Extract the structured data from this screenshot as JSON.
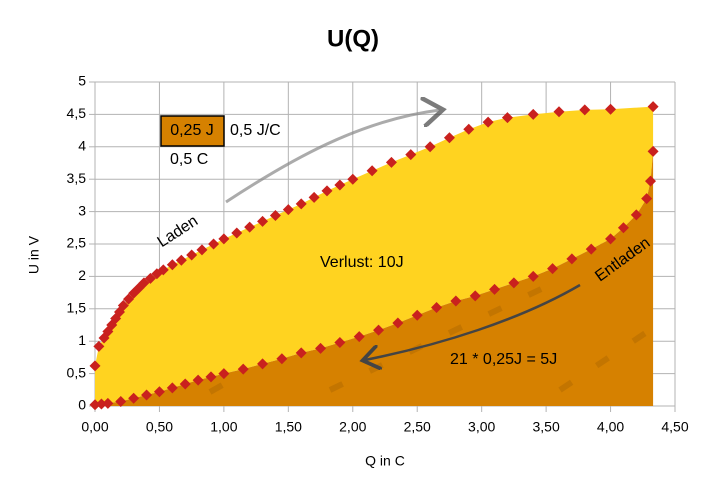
{
  "chart_data": {
    "type": "scatter",
    "title": "U(Q)",
    "x_label": "Q in C",
    "y_label": "U in V",
    "xlim": [
      0,
      4.5
    ],
    "xticks": [
      {
        "value": 0,
        "label": "0,00"
      },
      {
        "value": 0.5,
        "label": "0,50"
      },
      {
        "value": 1,
        "label": "1,00"
      },
      {
        "value": 1.5,
        "label": "1,50"
      },
      {
        "value": 2,
        "label": "2,00"
      },
      {
        "value": 2.5,
        "label": "2,50"
      },
      {
        "value": 3,
        "label": "3,00"
      },
      {
        "value": 3.5,
        "label": "3,50"
      },
      {
        "value": 4,
        "label": "4,00"
      },
      {
        "value": 4.5,
        "label": "4,50"
      }
    ],
    "ylim": [
      0,
      5
    ],
    "yticks": [
      0,
      {
        "value": 0.5,
        "label": "0,5"
      },
      1,
      {
        "value": 1.5,
        "label": "1,5"
      },
      2,
      {
        "value": 2.5,
        "label": "2,5"
      },
      3,
      {
        "value": 3.5,
        "label": "3,5"
      },
      4,
      {
        "value": 4.5,
        "label": "4,5"
      },
      5
    ],
    "grid": true,
    "series": [
      {
        "color": "#c9211e",
        "fill": "#ffd320",
        "x": [
          0.0,
          0.03,
          0.07,
          0.1,
          0.13,
          0.16,
          0.19,
          0.22,
          0.26,
          0.3,
          0.34,
          0.38,
          0.43,
          0.48,
          0.53,
          0.6,
          0.67,
          0.75,
          0.83,
          0.92,
          1.0,
          1.1,
          1.2,
          1.3,
          1.4,
          1.5,
          1.6,
          1.7,
          1.8,
          1.9,
          2.0,
          2.15,
          2.3,
          2.45,
          2.6,
          2.75,
          2.9,
          3.05,
          3.2,
          3.4,
          3.6,
          3.8,
          4.0,
          4.33
        ],
        "values": [
          0.62,
          0.92,
          1.05,
          1.15,
          1.25,
          1.35,
          1.45,
          1.55,
          1.65,
          1.74,
          1.82,
          1.9,
          1.97,
          2.04,
          2.1,
          2.18,
          2.25,
          2.33,
          2.41,
          2.5,
          2.58,
          2.67,
          2.76,
          2.85,
          2.94,
          3.03,
          3.12,
          3.22,
          3.32,
          3.41,
          3.5,
          3.63,
          3.76,
          3.88,
          4.0,
          4.14,
          4.27,
          4.38,
          4.45,
          4.5,
          4.54,
          4.57,
          4.58,
          4.62
        ]
      },
      {
        "color": "#c9211e",
        "fill": "#d68100",
        "x": [
          0.0,
          0.05,
          0.1,
          0.2,
          0.3,
          0.4,
          0.5,
          0.6,
          0.7,
          0.8,
          0.9,
          1.0,
          1.15,
          1.3,
          1.45,
          1.6,
          1.75,
          1.9,
          2.05,
          2.2,
          2.35,
          2.5,
          2.65,
          2.8,
          2.95,
          3.1,
          3.25,
          3.4,
          3.55,
          3.7,
          3.85,
          4.0,
          4.1,
          4.2,
          4.28,
          4.31,
          4.33
        ],
        "values": [
          0.02,
          0.03,
          0.04,
          0.07,
          0.12,
          0.17,
          0.22,
          0.28,
          0.34,
          0.4,
          0.45,
          0.5,
          0.57,
          0.65,
          0.73,
          0.82,
          0.89,
          0.98,
          1.07,
          1.17,
          1.28,
          1.4,
          1.52,
          1.62,
          1.7,
          1.8,
          1.9,
          2.0,
          2.12,
          2.27,
          2.42,
          2.58,
          2.75,
          2.95,
          3.2,
          3.47,
          3.93
        ]
      }
    ],
    "annotations": [
      "0,25 J",
      "0,5 J/C",
      "0,5 C",
      "Laden",
      "Verlust: 10J",
      "Entladen",
      "21 * 0,25J = 5J"
    ]
  }
}
